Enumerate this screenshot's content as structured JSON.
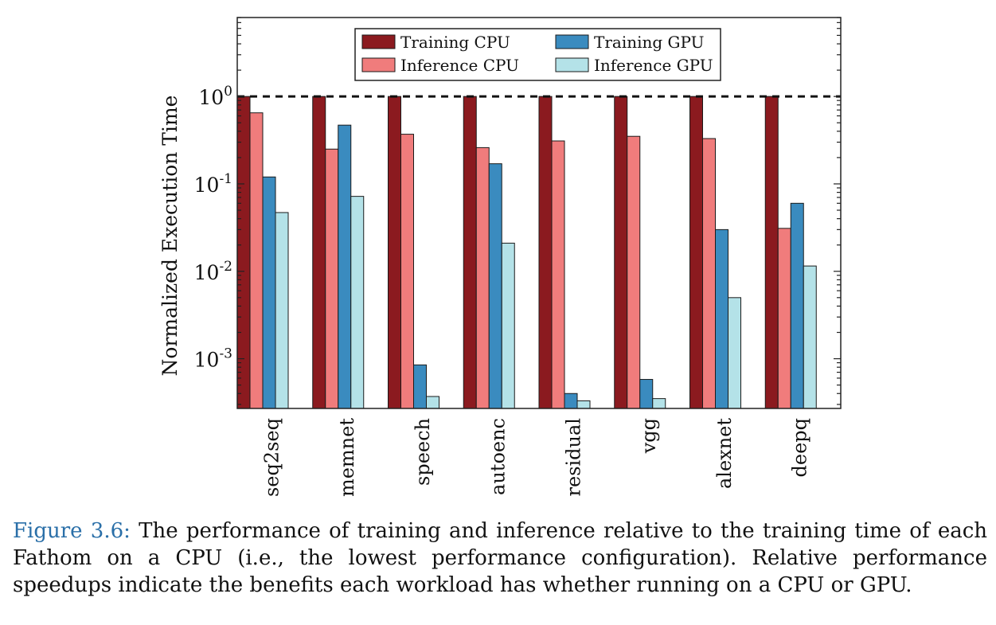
{
  "chart_data": {
    "type": "bar",
    "title": "",
    "ylabel": "Normalized Execution Time",
    "xlabel": "",
    "y_scale": "log",
    "ylim": [
      0.00027,
      8
    ],
    "y_ticks": [
      {
        "value": 1,
        "base": "10",
        "exp": "0"
      },
      {
        "value": 0.1,
        "base": "10",
        "exp": "-1"
      },
      {
        "value": 0.01,
        "base": "10",
        "exp": "-2"
      },
      {
        "value": 0.001,
        "base": "10",
        "exp": "-3"
      }
    ],
    "reference_line": {
      "value": 1,
      "style": "dashed"
    },
    "grid": false,
    "legend_position": "top",
    "categories": [
      "seq2seq",
      "memnet",
      "speech",
      "autoenc",
      "residual",
      "vgg",
      "alexnet",
      "deepq"
    ],
    "series": [
      {
        "name": "Training CPU",
        "color": "#8b1a1f",
        "values": [
          1,
          1,
          1,
          1,
          1,
          1,
          1,
          1
        ]
      },
      {
        "name": "Inference CPU",
        "color": "#f07c7c",
        "values": [
          0.65,
          0.25,
          0.37,
          0.26,
          0.31,
          0.35,
          0.33,
          0.031
        ]
      },
      {
        "name": "Training GPU",
        "color": "#3a8bbf",
        "values": [
          0.12,
          0.47,
          0.00085,
          0.17,
          0.0004,
          0.00058,
          0.03,
          0.06
        ]
      },
      {
        "name": "Inference GPU",
        "color": "#b4e2e8",
        "values": [
          0.047,
          0.072,
          0.00037,
          0.021,
          0.00033,
          0.00035,
          0.005,
          0.0115
        ]
      }
    ]
  },
  "caption": {
    "label": "Figure 3.6:",
    "text": "The performance of training and inference relative to the training time of each Fathom on a CPU (i.e., the lowest performance configuration). Relative performance speedups indicate the benefits each workload has whether running on a CPU or GPU."
  }
}
